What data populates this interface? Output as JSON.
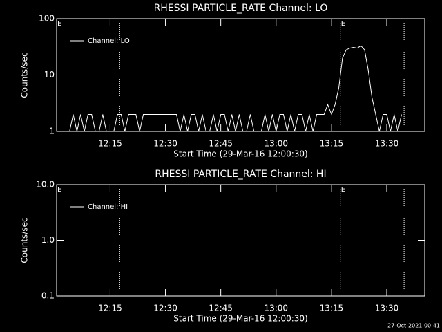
{
  "chart_data": [
    {
      "type": "line",
      "title": "RHESSI PARTICLE_RATE Channel: LO",
      "xlabel": "Start Time (29-Mar-16 12:00:30)",
      "ylabel": "Counts/sec",
      "ylog": true,
      "ylim": [
        1,
        100
      ],
      "yticks": [
        1,
        10,
        100
      ],
      "xlim": [
        0.5,
        100.3
      ],
      "xticks": [
        {
          "value": 15,
          "label": "12:15"
        },
        {
          "value": 30,
          "label": "12:30"
        },
        {
          "value": 45,
          "label": "12:45"
        },
        {
          "value": 60,
          "label": "13:00"
        },
        {
          "value": 75,
          "label": "13:15"
        },
        {
          "value": 90,
          "label": "13:30"
        }
      ],
      "vlines": [
        17.6,
        77.4,
        94.7
      ],
      "annotations": [
        {
          "text": "E",
          "x": 0.5
        },
        {
          "text": "E",
          "x": 77.4
        }
      ],
      "legend": "upper left",
      "x": [
        1,
        2,
        3,
        4,
        5,
        6,
        7,
        8,
        9,
        10,
        11,
        12,
        13,
        14,
        15,
        16,
        17,
        18,
        19,
        20,
        21,
        22,
        23,
        24,
        25,
        26,
        27,
        28,
        29,
        30,
        31,
        32,
        33,
        34,
        35,
        36,
        37,
        38,
        39,
        40,
        41,
        42,
        43,
        44,
        45,
        46,
        47,
        48,
        49,
        50,
        51,
        52,
        53,
        54,
        55,
        56,
        57,
        58,
        59,
        60,
        61,
        62,
        63,
        64,
        65,
        66,
        67,
        68,
        69,
        70,
        71,
        72,
        73,
        74,
        75,
        76,
        77,
        78,
        79,
        80,
        81,
        82,
        83,
        84,
        85,
        86,
        87,
        88,
        89,
        90,
        91,
        92,
        93,
        94
      ],
      "series": [
        {
          "name": "Channel: LO",
          "color": "#ffffff",
          "values": [
            1,
            1,
            1,
            1,
            2,
            1,
            2,
            1,
            2,
            2,
            1,
            1,
            2,
            1,
            1,
            1,
            2,
            2,
            1,
            2,
            2,
            2,
            1,
            2,
            2,
            2,
            2,
            2,
            2,
            2,
            2,
            2,
            2,
            1,
            2,
            1,
            2,
            2,
            1,
            2,
            1,
            1,
            2,
            1,
            2,
            2,
            1,
            2,
            1,
            2,
            1,
            1,
            2,
            1,
            1,
            1,
            2,
            1,
            2,
            1,
            2,
            2,
            1,
            2,
            1,
            2,
            2,
            1,
            2,
            1,
            2,
            2,
            2,
            3,
            2,
            3,
            6,
            20,
            28,
            30,
            31,
            30,
            33,
            28,
            12,
            4,
            2,
            1,
            2,
            2,
            1,
            2,
            1,
            2
          ]
        }
      ]
    },
    {
      "type": "line",
      "title": "RHESSI PARTICLE_RATE Channel: HI",
      "xlabel": "Start Time (29-Mar-16 12:00:30)",
      "ylabel": "Counts/sec",
      "ylog": true,
      "ylim": [
        0.1,
        10
      ],
      "yticks": [
        0.1,
        {
          "value": 1,
          "label": "1.0"
        },
        {
          "value": 10,
          "label": "10.0"
        }
      ],
      "xlim": [
        0.5,
        100.3
      ],
      "xticks": [
        {
          "value": 15,
          "label": "12:15"
        },
        {
          "value": 30,
          "label": "12:30"
        },
        {
          "value": 45,
          "label": "12:45"
        },
        {
          "value": 60,
          "label": "13:00"
        },
        {
          "value": 75,
          "label": "13:15"
        },
        {
          "value": 90,
          "label": "13:30"
        }
      ],
      "vlines": [
        17.6,
        77.4,
        94.7
      ],
      "annotations": [
        {
          "text": "E",
          "x": 0.5
        },
        {
          "text": "E",
          "x": 77.4
        }
      ],
      "legend": "upper left",
      "x": [],
      "series": [
        {
          "name": "Channel: HI",
          "color": "#ffffff",
          "values": []
        }
      ]
    }
  ],
  "footer": "27-Oct-2021 00:41"
}
